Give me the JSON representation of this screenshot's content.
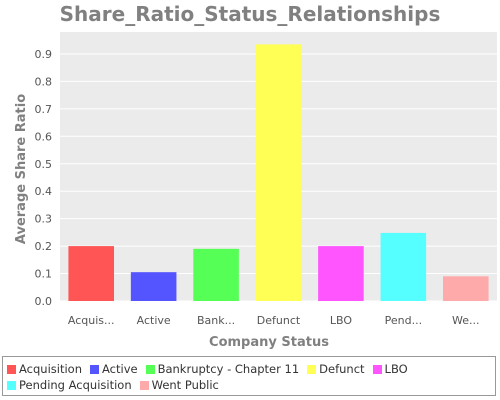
{
  "chart_data": {
    "type": "bar",
    "title": "Share_Ratio_Status_Relationships",
    "xlabel": "Company Status",
    "ylabel": "Average Share Ratio",
    "ylim": [
      0,
      0.98
    ],
    "yticks": [
      0.0,
      0.1,
      0.2,
      0.3,
      0.4,
      0.5,
      0.6,
      0.7,
      0.8,
      0.9
    ],
    "grid": true,
    "legend_position": "bottom",
    "categories": [
      "Acquisition",
      "Active",
      "Bankruptcy - Chapter 11",
      "Defunct",
      "LBO",
      "Pending Acquisition",
      "Went Public"
    ],
    "tick_labels": [
      "Acquis...",
      "Active",
      "Bank...",
      "Defunct",
      "LBO",
      "Pend...",
      "We..."
    ],
    "values": [
      0.2,
      0.105,
      0.19,
      0.935,
      0.2,
      0.248,
      0.09
    ],
    "colors": [
      "#ff5555",
      "#5555ff",
      "#55ff55",
      "#ffff55",
      "#ff55ff",
      "#55ffff",
      "#ffaaaa"
    ],
    "legend": [
      [
        "Acquisition",
        "Active",
        "Bankruptcy - Chapter 11",
        "Defunct",
        "LBO"
      ],
      [
        "Pending Acquisition",
        "Went Public"
      ]
    ]
  }
}
